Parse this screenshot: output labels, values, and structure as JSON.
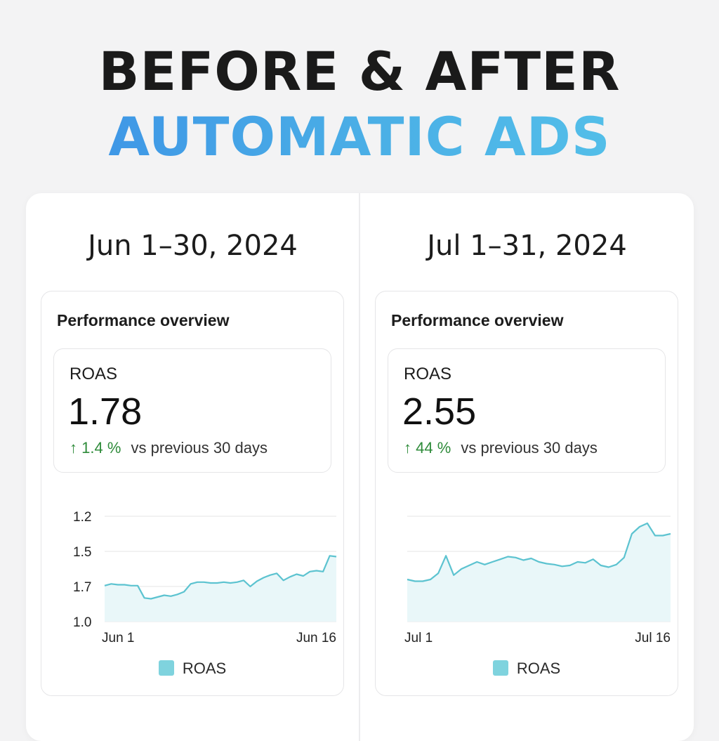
{
  "headline": {
    "line1": "BEFORE & AFTER",
    "line2": "AUTOMATIC ADS"
  },
  "colors": {
    "headline_gradient_start": "#3a8ee6",
    "headline_gradient_end": "#56c5ea",
    "series_line": "#5cc3d0",
    "series_fill": "#e9f7f9",
    "positive_change": "#2e8b3a"
  },
  "panels": [
    {
      "period": "Jun 1–30, 2024",
      "title": "Performance overview",
      "metric": {
        "label": "ROAS",
        "value": "1.78",
        "arrow": "↑",
        "change": "1.4 %",
        "comparison": "vs previous 30 days"
      },
      "legend_label": "ROAS"
    },
    {
      "period": "Jul 1–31, 2024",
      "title": "Performance overview",
      "metric": {
        "label": "ROAS",
        "value": "2.55",
        "arrow": "↑",
        "change": "44 %",
        "comparison": "vs previous 30 days"
      },
      "legend_label": "ROAS"
    }
  ],
  "chart_data": [
    {
      "type": "area",
      "y_tick_labels": [
        "1.2",
        "1.5",
        "1.7",
        "1.0"
      ],
      "x_tick_labels": [
        "Jun 1",
        "Jun 16"
      ],
      "legend": [
        "ROAS"
      ],
      "grid": true,
      "series": [
        {
          "name": "ROAS",
          "values": [
            1.41,
            1.43,
            1.42,
            1.42,
            1.41,
            1.41,
            1.27,
            1.26,
            1.28,
            1.3,
            1.29,
            1.31,
            1.34,
            1.43,
            1.45,
            1.45,
            1.44,
            1.44,
            1.45,
            1.44,
            1.45,
            1.47,
            1.4,
            1.46,
            1.5,
            1.53,
            1.55,
            1.47,
            1.51,
            1.54,
            1.52,
            1.57,
            1.58,
            1.57,
            1.75,
            1.74
          ]
        }
      ]
    },
    {
      "type": "area",
      "y_tick_labels": [],
      "x_tick_labels": [
        "Jul 1",
        "Jul 16"
      ],
      "legend": [
        "ROAS"
      ],
      "grid": true,
      "series": [
        {
          "name": "ROAS",
          "values": [
            1.48,
            1.46,
            1.46,
            1.48,
            1.55,
            1.75,
            1.53,
            1.6,
            1.64,
            1.68,
            1.65,
            1.68,
            1.71,
            1.74,
            1.73,
            1.7,
            1.72,
            1.68,
            1.66,
            1.65,
            1.63,
            1.64,
            1.68,
            1.67,
            1.71,
            1.64,
            1.62,
            1.65,
            1.73,
            2.0,
            2.08,
            2.12,
            1.98,
            1.98,
            2.0
          ]
        }
      ]
    }
  ]
}
